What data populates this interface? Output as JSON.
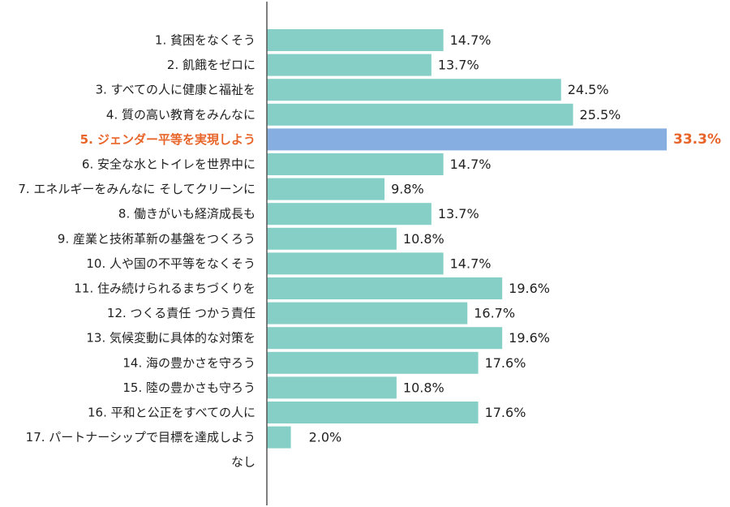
{
  "chart_data": {
    "type": "bar",
    "orientation": "horizontal",
    "title": "",
    "xlabel": "",
    "ylabel": "",
    "xlim": [
      0,
      33.3
    ],
    "grid": false,
    "legend": "none",
    "colors": {
      "bar": "#86cfc6",
      "highlight_bar": "#86aee0",
      "highlight_text": "#e8652a",
      "axis": "#555555",
      "text": "#222222"
    },
    "highlight_index": 4,
    "categories": [
      "1. 貧困をなくそう",
      "2. 飢餓をゼロに",
      "3. すべての人に健康と福祉を",
      "4. 質の高い教育をみんなに",
      "5. ジェンダー平等を実現しよう",
      "6. 安全な水とトイレを世界中に",
      "7. エネルギーをみんなに そしてクリーンに",
      "8. 働きがいも経済成長も",
      "9. 産業と技術革新の基盤をつくろう",
      "10. 人や国の不平等をなくそう",
      "11. 住み続けられるまちづくりを",
      "12. つくる責任 つかう責任",
      "13. 気候変動に具体的な対策を",
      "14. 海の豊かさを守ろう",
      "15. 陸の豊かさも守ろう",
      "16. 平和と公正をすべての人に",
      "17. パートナーシップで目標を達成しよう",
      "なし"
    ],
    "values": [
      14.7,
      13.7,
      24.5,
      25.5,
      33.3,
      14.7,
      9.8,
      13.7,
      10.8,
      14.7,
      19.6,
      16.7,
      19.6,
      17.6,
      10.8,
      17.6,
      2.0,
      null
    ],
    "value_labels": [
      "14.7%",
      "13.7%",
      "24.5%",
      "25.5%",
      "33.3%",
      "14.7%",
      "9.8%",
      "13.7%",
      "10.8%",
      "14.7%",
      "19.6%",
      "16.7%",
      "19.6%",
      "17.6%",
      "10.8%",
      "17.6%",
      "2.0%",
      ""
    ]
  }
}
